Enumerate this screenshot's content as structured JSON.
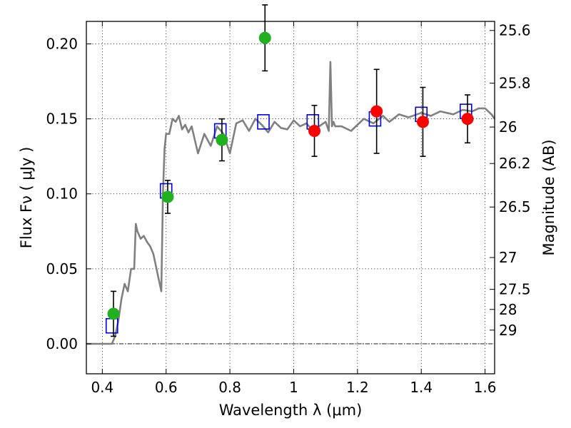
{
  "chart_data": {
    "type": "scatter",
    "title": "",
    "xlabel": "Wavelength  λ (μm)",
    "ylabel": "Flux  Fν  ( μJy )",
    "y2label": "Magnitude (AB)",
    "xlim": [
      0.35,
      1.63
    ],
    "ylim": [
      -0.02,
      0.215
    ],
    "grid": true,
    "x_ticks": [
      0.4,
      0.6,
      0.8,
      1.0,
      1.2,
      1.4,
      1.6
    ],
    "x_tick_labels": [
      "0.4",
      "0.6",
      "0.8",
      "1",
      "1.2",
      "1.4",
      "1.6"
    ],
    "y_ticks": [
      0.0,
      0.05,
      0.1,
      0.15,
      0.2
    ],
    "y_tick_labels": [
      "0.00",
      "0.05",
      "0.10",
      "0.15",
      "0.20"
    ],
    "y2_ticks": [
      25.6,
      25.8,
      26,
      26.2,
      26.5,
      27,
      27.5,
      28,
      29
    ],
    "y2_tick_labels": [
      "25.6",
      "25.8",
      "26",
      "26.2",
      "26.5",
      "27",
      "27.5",
      "28",
      "29"
    ],
    "model_spectrum": {
      "color": "#808080",
      "x": [
        0.35,
        0.43,
        0.44,
        0.45,
        0.46,
        0.47,
        0.48,
        0.49,
        0.5,
        0.505,
        0.51,
        0.52,
        0.53,
        0.54,
        0.55,
        0.56,
        0.57,
        0.575,
        0.58,
        0.585,
        0.59,
        0.595,
        0.6,
        0.61,
        0.62,
        0.63,
        0.64,
        0.65,
        0.66,
        0.67,
        0.68,
        0.7,
        0.72,
        0.74,
        0.76,
        0.78,
        0.8,
        0.82,
        0.84,
        0.86,
        0.88,
        0.9,
        0.92,
        0.94,
        0.96,
        0.98,
        1.0,
        1.02,
        1.04,
        1.06,
        1.08,
        1.1,
        1.11,
        1.115,
        1.12,
        1.125,
        1.13,
        1.15,
        1.18,
        1.2,
        1.22,
        1.25,
        1.28,
        1.3,
        1.33,
        1.36,
        1.4,
        1.43,
        1.46,
        1.5,
        1.53,
        1.56,
        1.58,
        1.6,
        1.62,
        1.63
      ],
      "y": [
        0.0,
        0.0,
        0.005,
        0.015,
        0.03,
        0.04,
        0.035,
        0.05,
        0.05,
        0.08,
        0.075,
        0.07,
        0.072,
        0.068,
        0.065,
        0.06,
        0.05,
        0.045,
        0.04,
        0.035,
        0.1,
        0.13,
        0.14,
        0.14,
        0.15,
        0.148,
        0.152,
        0.143,
        0.146,
        0.141,
        0.145,
        0.127,
        0.14,
        0.132,
        0.145,
        0.14,
        0.127,
        0.147,
        0.149,
        0.142,
        0.15,
        0.146,
        0.141,
        0.148,
        0.144,
        0.143,
        0.149,
        0.145,
        0.147,
        0.142,
        0.145,
        0.148,
        0.142,
        0.188,
        0.145,
        0.148,
        0.145,
        0.145,
        0.142,
        0.146,
        0.15,
        0.147,
        0.152,
        0.148,
        0.153,
        0.151,
        0.154,
        0.152,
        0.155,
        0.153,
        0.156,
        0.155,
        0.157,
        0.157,
        0.153,
        0.15
      ]
    },
    "series": [
      {
        "marker": "circle",
        "color": "#20b020",
        "x": [
          0.435,
          0.605,
          0.775,
          0.91
        ],
        "y": [
          0.02,
          0.098,
          0.136,
          0.204
        ],
        "yerr": [
          0.015,
          0.011,
          0.014,
          0.022
        ]
      },
      {
        "marker": "circle",
        "color": "#ff0000",
        "x": [
          1.065,
          1.26,
          1.405,
          1.545
        ],
        "y": [
          0.142,
          0.155,
          0.148,
          0.15
        ],
        "yerr": [
          0.017,
          0.028,
          0.023,
          0.016
        ]
      },
      {
        "marker": "square",
        "color": "#0000dd",
        "x": [
          0.43,
          0.6,
          0.77,
          0.905,
          1.06,
          1.255,
          1.4,
          1.54
        ],
        "y": [
          0.012,
          0.102,
          0.142,
          0.148,
          0.148,
          0.15,
          0.153,
          0.155
        ]
      }
    ]
  }
}
